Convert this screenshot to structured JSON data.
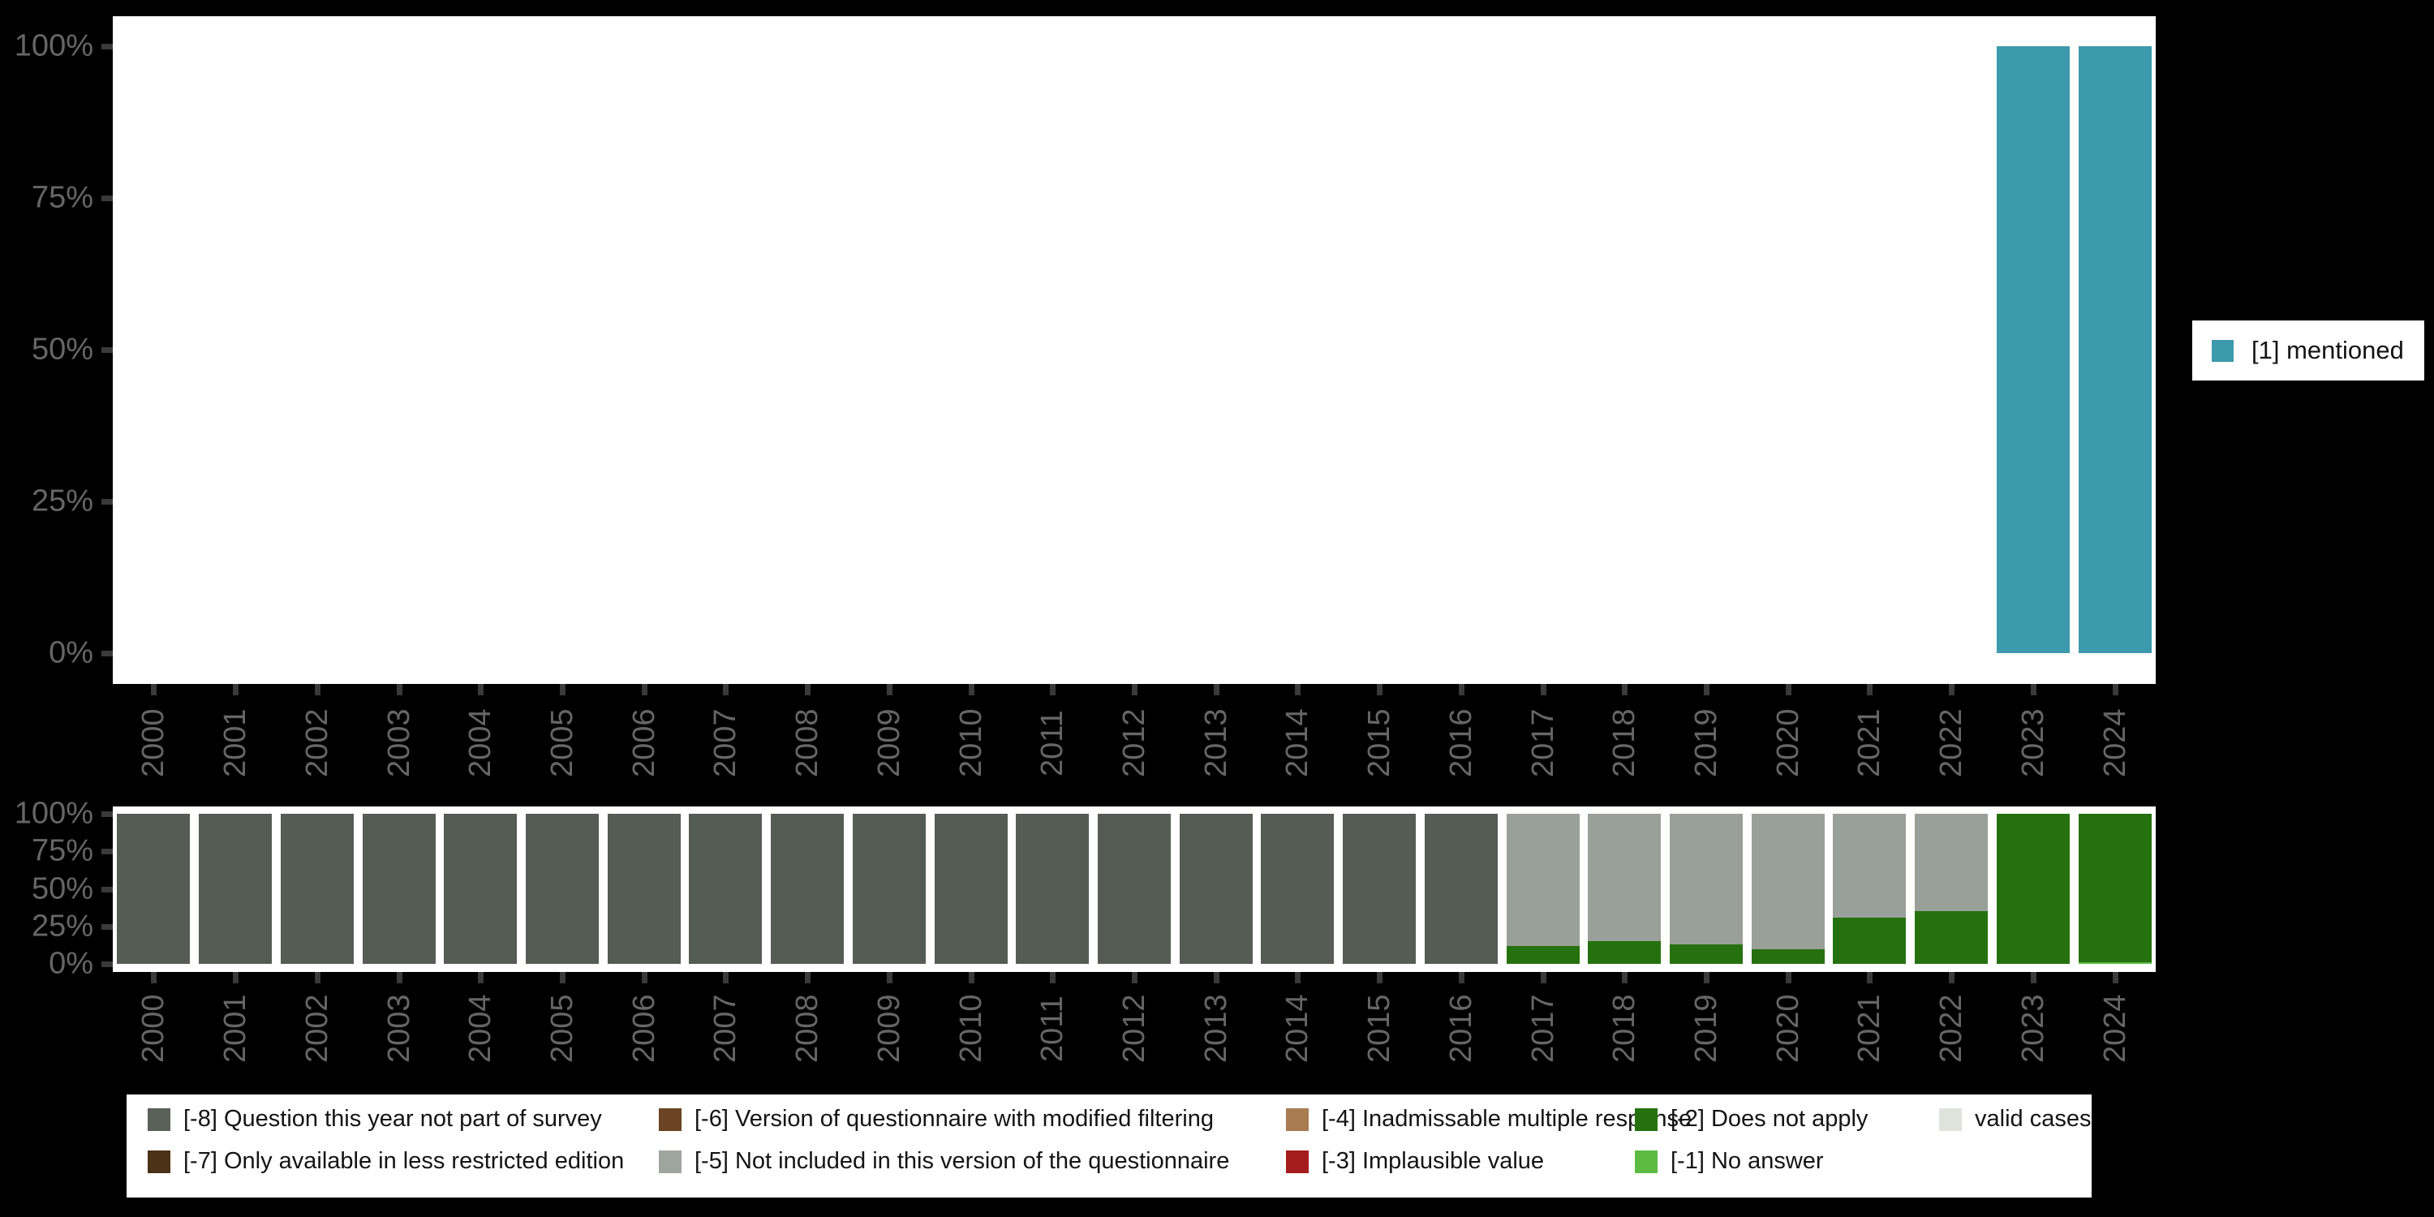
{
  "background_color": "#000000",
  "panel_color": "#ffffff",
  "axis_text_color": "#666666",
  "tick_mark_color": "#3a3a3a",
  "chart_data": [
    {
      "id": "mentioned-by-year",
      "type": "bar",
      "title": "",
      "xlabel": "",
      "ylabel": "",
      "ylim": [
        0,
        100
      ],
      "grid": false,
      "categories": [
        "2000",
        "2001",
        "2002",
        "2003",
        "2004",
        "2005",
        "2006",
        "2007",
        "2008",
        "2009",
        "2010",
        "2011",
        "2012",
        "2013",
        "2014",
        "2015",
        "2016",
        "2017",
        "2018",
        "2019",
        "2020",
        "2021",
        "2022",
        "2023",
        "2024"
      ],
      "y_ticks": [
        {
          "label": "0%",
          "value": 0
        },
        {
          "label": "25%",
          "value": 25
        },
        {
          "label": "50%",
          "value": 50
        },
        {
          "label": "75%",
          "value": 75
        },
        {
          "label": "100%",
          "value": 100
        }
      ],
      "stack_order": [
        "[1] mentioned"
      ],
      "series": [
        {
          "name": "[1] mentioned",
          "color": "#3d99ac",
          "values": [
            0,
            0,
            0,
            0,
            0,
            0,
            0,
            0,
            0,
            0,
            0,
            0,
            0,
            0,
            0,
            0,
            0,
            0,
            0,
            0,
            0,
            0,
            0,
            100,
            100
          ]
        }
      ],
      "legend": {
        "position": "right",
        "items": [
          {
            "label": "[1] mentioned",
            "color": "#3d99ac"
          }
        ]
      }
    },
    {
      "id": "missing-values-by-year",
      "type": "stacked-bar",
      "title": "",
      "xlabel": "",
      "ylabel": "",
      "ylim": [
        0,
        100
      ],
      "grid": false,
      "categories": [
        "2000",
        "2001",
        "2002",
        "2003",
        "2004",
        "2005",
        "2006",
        "2007",
        "2008",
        "2009",
        "2010",
        "2011",
        "2012",
        "2013",
        "2014",
        "2015",
        "2016",
        "2017",
        "2018",
        "2019",
        "2020",
        "2021",
        "2022",
        "2023",
        "2024"
      ],
      "y_ticks": [
        {
          "label": "0%",
          "value": 0
        },
        {
          "label": "25%",
          "value": 25
        },
        {
          "label": "50%",
          "value": 50
        },
        {
          "label": "75%",
          "value": 75
        },
        {
          "label": "100%",
          "value": 100
        }
      ],
      "stack_order": [
        "[-1] No answer",
        "[-2] Does not apply",
        "[-5] Not included in this version of the questionnaire",
        "[-8] Question this year not part of survey"
      ],
      "series": [
        {
          "name": "[-8] Question this year not part of survey",
          "color": "#555c54",
          "values": [
            100,
            100,
            100,
            100,
            100,
            100,
            100,
            100,
            100,
            100,
            100,
            100,
            100,
            100,
            100,
            100,
            100,
            0,
            0,
            0,
            0,
            0,
            0,
            0,
            0
          ]
        },
        {
          "name": "[-5] Not included in this version of the questionnaire",
          "color": "#99a099",
          "values": [
            0,
            0,
            0,
            0,
            0,
            0,
            0,
            0,
            0,
            0,
            0,
            0,
            0,
            0,
            0,
            0,
            0,
            88,
            85,
            87,
            90,
            69,
            65,
            0,
            0
          ]
        },
        {
          "name": "[-2] Does not apply",
          "color": "#26710f",
          "values": [
            0,
            0,
            0,
            0,
            0,
            0,
            0,
            0,
            0,
            0,
            0,
            0,
            0,
            0,
            0,
            0,
            0,
            12,
            15,
            13,
            10,
            31,
            35,
            100,
            99
          ]
        },
        {
          "name": "[-1] No answer",
          "color": "#5dbb41",
          "values": [
            0,
            0,
            0,
            0,
            0,
            0,
            0,
            0,
            0,
            0,
            0,
            0,
            0,
            0,
            0,
            0,
            0,
            0,
            0,
            0,
            0,
            0,
            0,
            0,
            1
          ]
        }
      ],
      "legend": {
        "position": "bottom",
        "columns": [
          [
            {
              "label": "[-8] Question this year not part of survey",
              "color": "#5a6158"
            },
            {
              "label": "[-7] Only available in less restricted edition",
              "color": "#4b3318"
            }
          ],
          [
            {
              "label": "[-6] Version of questionnaire with modified filtering",
              "color": "#6a4423"
            },
            {
              "label": "[-5] Not included in this version of the questionnaire",
              "color": "#9ea59e"
            }
          ],
          [
            {
              "label": "[-4] Inadmissable multiple response",
              "color": "#a87c50"
            },
            {
              "label": "[-3] Implausible value",
              "color": "#a51c1c"
            }
          ],
          [
            {
              "label": "[-2] Does not apply",
              "color": "#26710f"
            },
            {
              "label": "[-1] No answer",
              "color": "#5dbb41"
            }
          ],
          [
            {
              "label": "valid cases",
              "color": "#dfe3db"
            }
          ]
        ]
      }
    }
  ]
}
